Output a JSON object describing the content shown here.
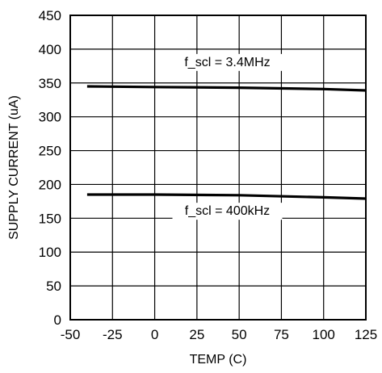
{
  "chart_data": {
    "type": "line",
    "title": "",
    "xlabel": "TEMP (C)",
    "ylabel": "SUPPLY CURRENT (uA)",
    "xlim": [
      -50,
      125
    ],
    "ylim": [
      0,
      450
    ],
    "xticks": [
      -50,
      -25,
      0,
      25,
      50,
      75,
      100,
      125
    ],
    "yticks": [
      0,
      50,
      100,
      150,
      200,
      250,
      300,
      350,
      400,
      450
    ],
    "grid": true,
    "legend": "none",
    "series": [
      {
        "name": "f_scl = 3.4MHz",
        "x": [
          -40,
          0,
          50,
          100,
          125
        ],
        "y": [
          345,
          344,
          343,
          341,
          339
        ]
      },
      {
        "name": "f_scl = 400kHz",
        "x": [
          -40,
          0,
          50,
          100,
          125
        ],
        "y": [
          185,
          185,
          184,
          181,
          179
        ]
      }
    ],
    "annotations": [
      {
        "text": "f_scl = 3.4MHz",
        "x": 43,
        "y": 375
      },
      {
        "text": "f_scl = 400kHz",
        "x": 43,
        "y": 155
      }
    ]
  }
}
